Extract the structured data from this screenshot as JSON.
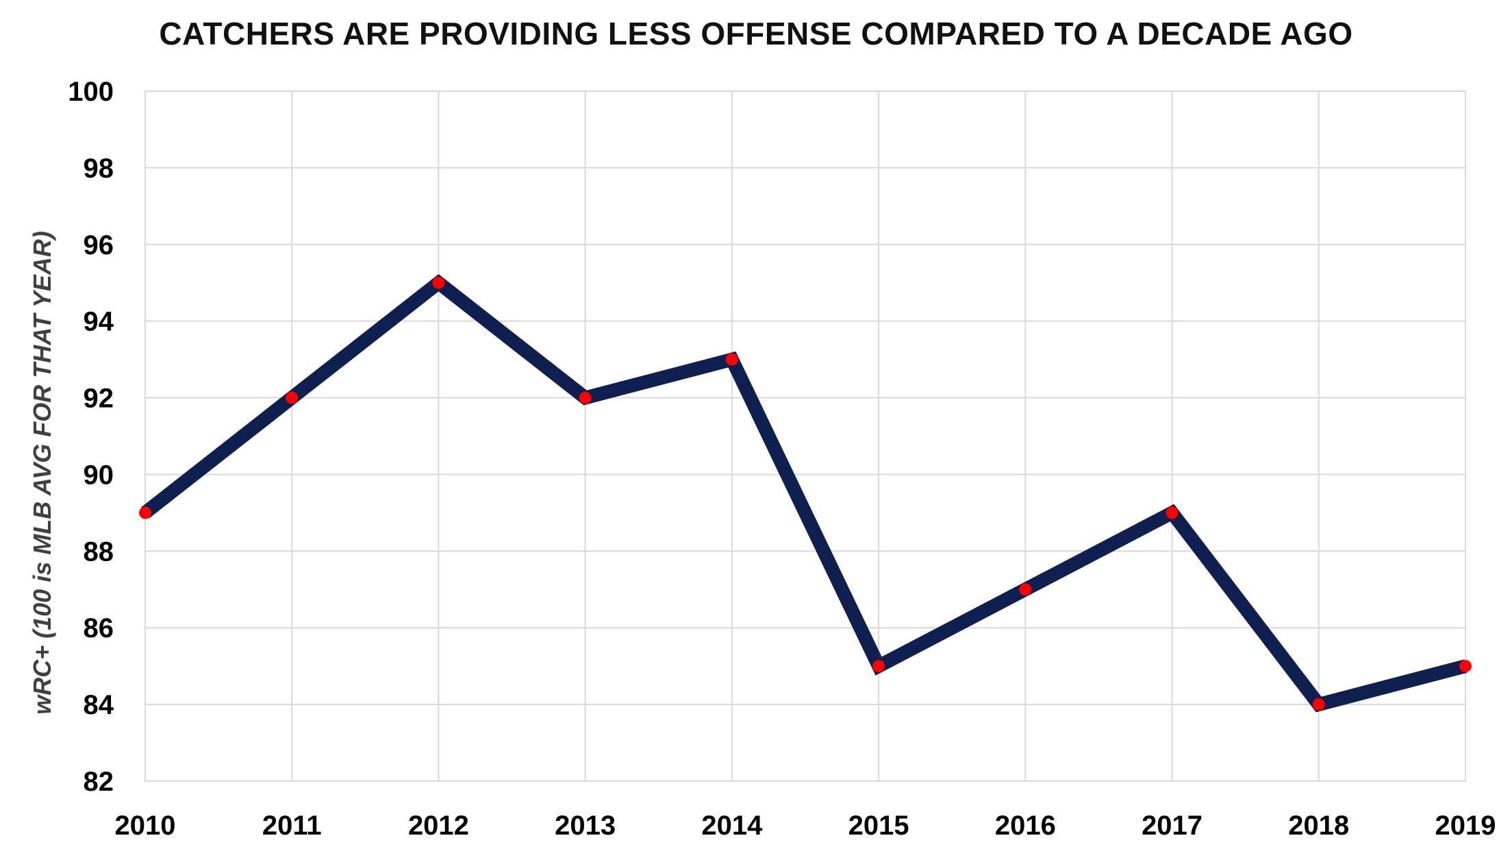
{
  "chart_data": {
    "type": "line",
    "title": "CATCHERS ARE PROVIDING LESS OFFENSE COMPARED TO A DECADE AGO",
    "xlabel": "",
    "ylabel": "wRC+ (100 is MLB AVG FOR THAT YEAR)",
    "x": [
      "2010",
      "2011",
      "2012",
      "2013",
      "2014",
      "2015",
      "2016",
      "2017",
      "2018",
      "2019"
    ],
    "series": [
      {
        "values": [
          89,
          92,
          95,
          92,
          93,
          85,
          87,
          89,
          84,
          85
        ]
      }
    ],
    "ylim": [
      82,
      100
    ],
    "yticks": [
      82,
      84,
      86,
      88,
      90,
      92,
      94,
      96,
      98,
      100
    ],
    "grid": true,
    "legend": "none",
    "colors": {
      "line": "#0f1f4f",
      "marker": "#ff0000",
      "grid": "#d9d9d9"
    }
  }
}
